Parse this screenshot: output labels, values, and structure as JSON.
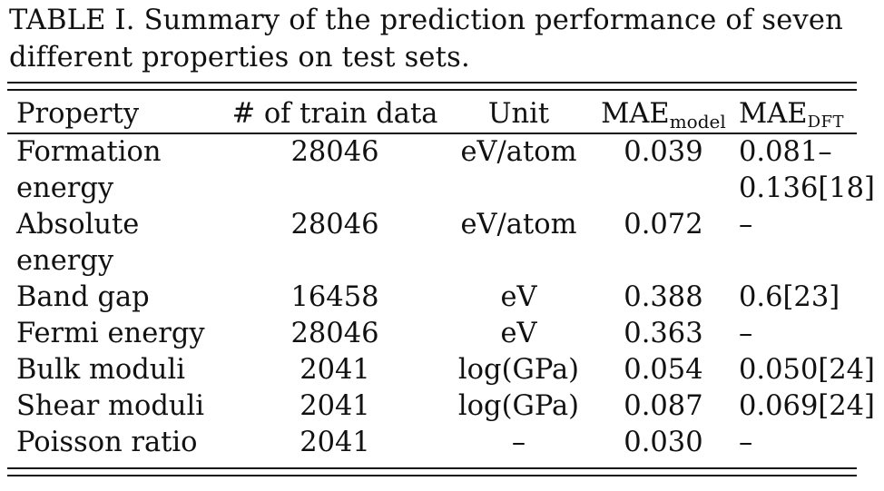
{
  "caption": "TABLE I. Summary of the prediction performance of seven different properties on test sets.",
  "table": {
    "headers": {
      "property": "Property",
      "train": "# of train data",
      "unit": "Unit",
      "mae_model_main": "MAE",
      "mae_model_sub": "model",
      "mae_dft_main": "MAE",
      "mae_dft_sub": "DFT"
    },
    "rows": [
      {
        "property_line1": "Formation",
        "property_line2": "energy",
        "train": "28046",
        "unit": "eV/atom",
        "mae_model": "0.039",
        "mae_dft_line1": "0.081–",
        "mae_dft_line2": "0.136[18]"
      },
      {
        "property_line1": "Absolute",
        "property_line2": "energy",
        "train": "28046",
        "unit": "eV/atom",
        "mae_model": "0.072",
        "mae_dft_line1": "–",
        "mae_dft_line2": ""
      },
      {
        "property": "Band gap",
        "train": "16458",
        "unit": "eV",
        "mae_model": "0.388",
        "mae_dft": "0.6[23]"
      },
      {
        "property": "Fermi energy",
        "train": "28046",
        "unit": "eV",
        "mae_model": "0.363",
        "mae_dft": "–"
      },
      {
        "property": "Bulk moduli",
        "train": "2041",
        "unit": "log(GPa)",
        "mae_model": "0.054",
        "mae_dft": "0.050[24]"
      },
      {
        "property": "Shear moduli",
        "train": "2041",
        "unit": "log(GPa)",
        "mae_model": "0.087",
        "mae_dft": "0.069[24]"
      },
      {
        "property": "Poisson ratio",
        "train": "2041",
        "unit": "–",
        "mae_model": "0.030",
        "mae_dft": "–"
      }
    ]
  }
}
